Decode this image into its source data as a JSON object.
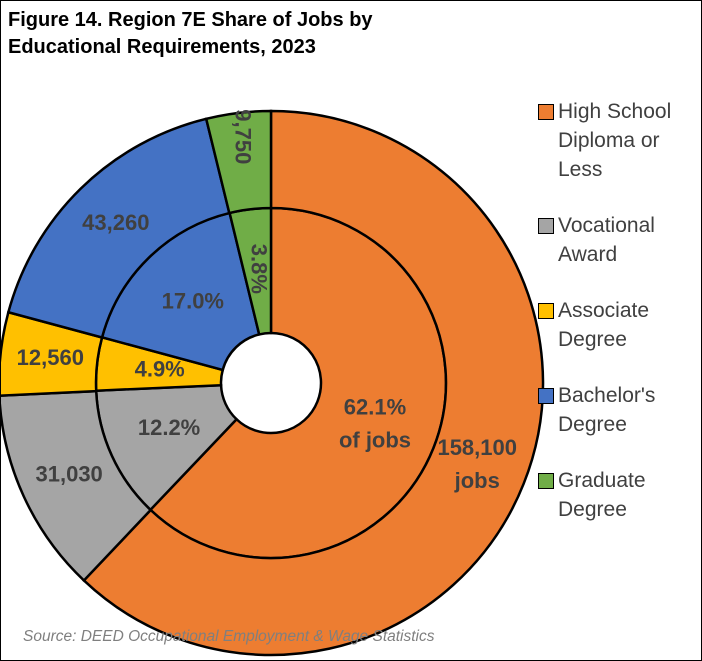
{
  "chart_data": {
    "type": "donut",
    "title": "Figure 14. Region 7E Share of Jobs by Educational Requirements, 2023",
    "source": "Source: DEED Occupational Employment & Wage Statistics",
    "categories": [
      "High School Diploma or Less",
      "Vocational Award",
      "Associate Degree",
      "Bachelor's Degree",
      "Graduate Degree"
    ],
    "colors": [
      "#ed7d31",
      "#a5a5a5",
      "#ffc000",
      "#4472c4",
      "#70ad47"
    ],
    "rings": [
      {
        "values": [
          62.1,
          12.2,
          4.9,
          17.0,
          3.8
        ],
        "value_labels": [
          "62.1% of jobs",
          "12.2%",
          "4.9%",
          "17.0%",
          "3.8%"
        ]
      },
      {
        "values": [
          158100,
          31030,
          12560,
          43260,
          9750
        ],
        "value_labels": [
          "158,100 jobs",
          "31,030",
          "12,560",
          "43,260",
          "9,750"
        ]
      }
    ]
  }
}
